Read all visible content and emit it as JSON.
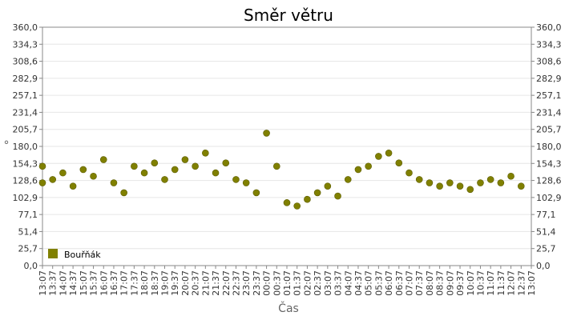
{
  "chart_data": {
    "type": "scatter",
    "title": "Směr větru",
    "xlabel": "Čas",
    "ylabel": "°",
    "ylim": [
      0,
      360
    ],
    "y_ticks": [
      "0,0",
      "25,7",
      "51,4",
      "77,1",
      "102,9",
      "128,6",
      "154,3",
      "180,0",
      "205,7",
      "231,4",
      "257,1",
      "282,9",
      "308,6",
      "334,3",
      "360,0"
    ],
    "x_ticks": [
      "13:07",
      "13:37",
      "14:07",
      "14:37",
      "15:07",
      "15:37",
      "16:07",
      "16:37",
      "17:07",
      "17:37",
      "18:07",
      "18:37",
      "19:07",
      "19:37",
      "20:07",
      "20:37",
      "21:07",
      "21:37",
      "22:07",
      "22:37",
      "23:07",
      "23:37",
      "00:07",
      "00:37",
      "01:07",
      "01:37",
      "02:07",
      "02:37",
      "03:07",
      "03:37",
      "04:07",
      "04:37",
      "05:07",
      "05:37",
      "06:07",
      "06:37",
      "07:07",
      "07:37",
      "08:07",
      "08:37",
      "09:07",
      "09:37",
      "10:07",
      "10:37",
      "11:07",
      "11:37",
      "12:07",
      "12:37",
      "13:07"
    ],
    "grid": true,
    "legend_position": "bottom-left",
    "series": [
      {
        "name": "Bouřňák",
        "color": "#808000",
        "x": [
          "13:07",
          "13:37",
          "14:07",
          "14:37",
          "15:07",
          "15:37",
          "16:07",
          "16:37",
          "17:07",
          "17:37",
          "18:07",
          "18:37",
          "19:07",
          "19:37",
          "20:07",
          "20:37",
          "21:07",
          "21:37",
          "22:07",
          "22:37",
          "23:07",
          "23:37",
          "00:07",
          "00:37",
          "01:07",
          "01:37",
          "02:07",
          "02:37",
          "03:07",
          "03:37",
          "04:07",
          "04:37",
          "05:07",
          "05:37",
          "06:07",
          "06:37",
          "07:07",
          "07:37",
          "08:07",
          "08:37",
          "09:07",
          "09:37",
          "10:07",
          "10:37",
          "11:07",
          "11:37",
          "12:07",
          "12:37",
          "13:07"
        ],
        "y": [
          150,
          130,
          140,
          120,
          145,
          135,
          160,
          125,
          110,
          150,
          140,
          155,
          130,
          145,
          160,
          150,
          170,
          140,
          155,
          130,
          125,
          110,
          200,
          150,
          95,
          90,
          100,
          110,
          120,
          105,
          130,
          145,
          150,
          165,
          170,
          155,
          140,
          130,
          125,
          120,
          125,
          120,
          115,
          125,
          130,
          125,
          135,
          120,
          125
        ]
      }
    ]
  }
}
